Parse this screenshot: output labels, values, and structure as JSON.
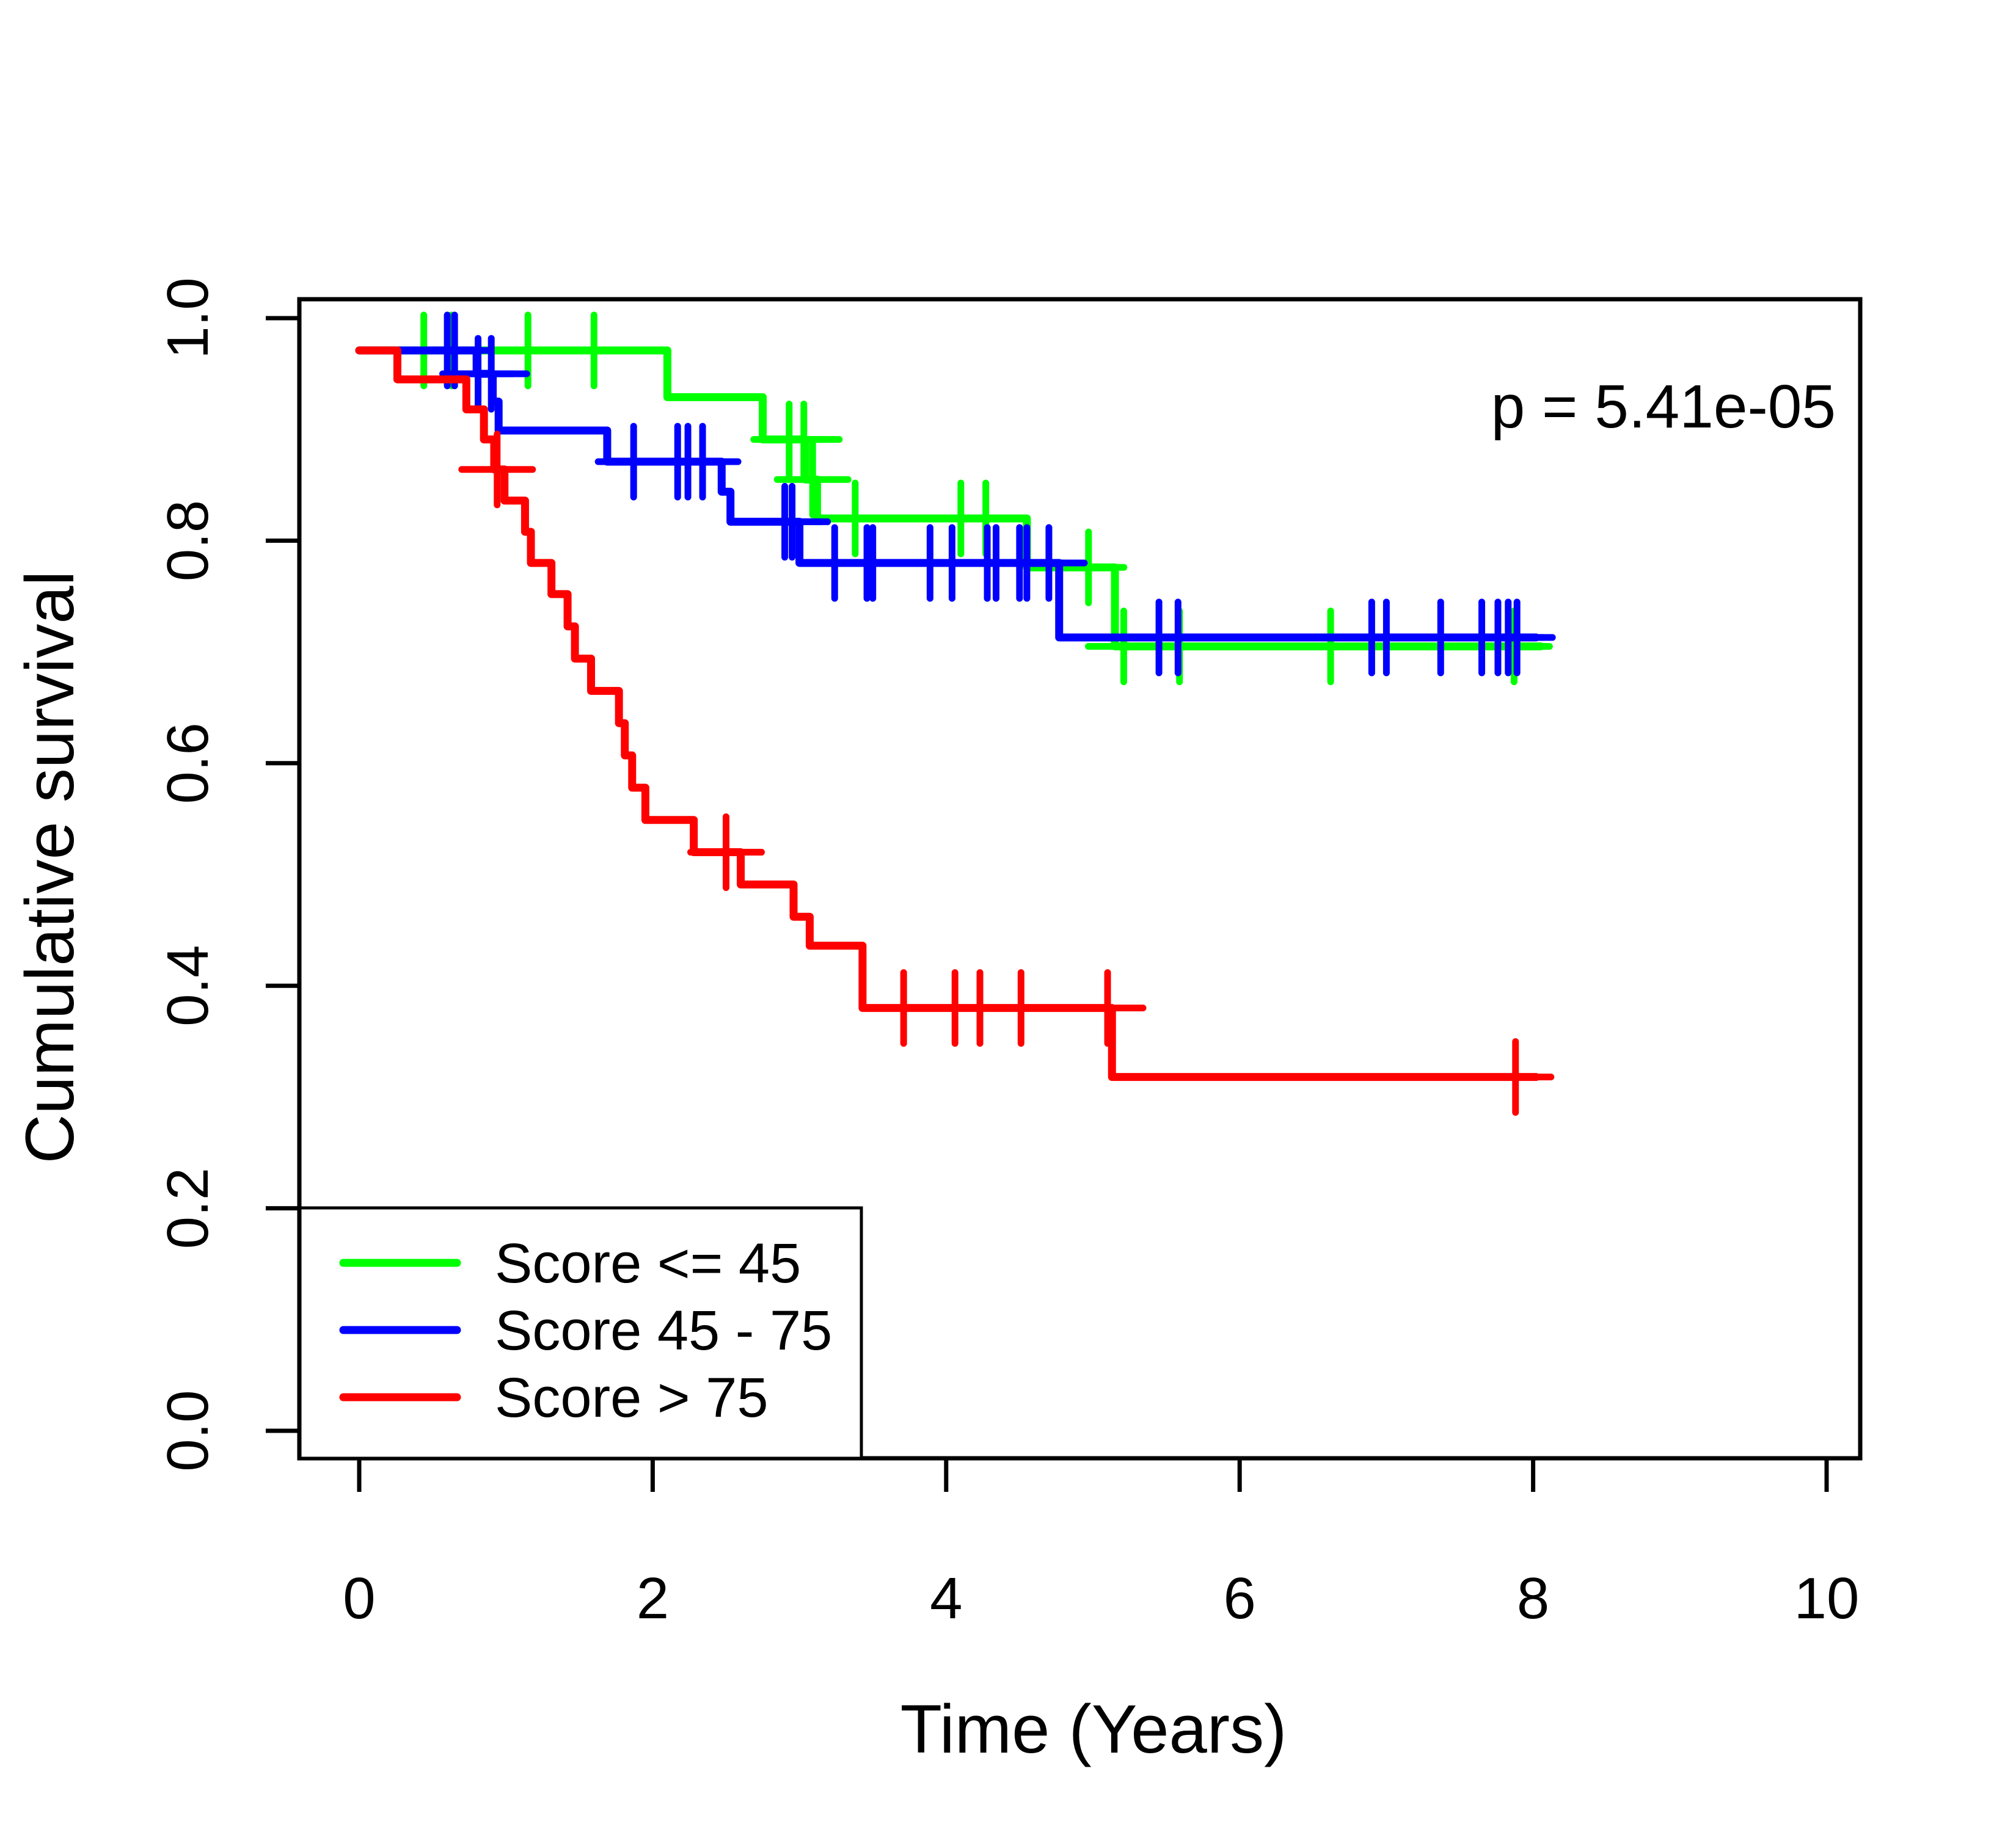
{
  "figure": {
    "background_color": "#ffffff",
    "plot_border_color": "#000000"
  },
  "annotation": {
    "text": "p = 5.41e-05"
  },
  "axes": {
    "x": {
      "label": "Time (Years)",
      "ticks": [
        "0",
        "2",
        "4",
        "6",
        "8",
        "10"
      ],
      "domain": [
        0,
        10
      ]
    },
    "y": {
      "label": "Cumulative survival",
      "ticks": [
        "0.0",
        "0.2",
        "0.4",
        "0.6",
        "0.8",
        "1.0"
      ],
      "domain": [
        0.0,
        1.0
      ]
    }
  },
  "legend": {
    "position": "bottom-left",
    "items": [
      {
        "label": "Score <= 45",
        "color": "#00ff00"
      },
      {
        "label": "Score 45 - 75",
        "color": "#0000ff"
      },
      {
        "label": "Score > 75",
        "color": "#ff0000"
      }
    ]
  },
  "chart_data": {
    "type": "line",
    "subtype": "kaplan-meier-step",
    "title": "",
    "xlabel": "Time (Years)",
    "ylabel": "Cumulative survival",
    "xlim": [
      0,
      10
    ],
    "ylim": [
      0.0,
      1.0
    ],
    "x_ticks": [
      0,
      2,
      4,
      6,
      8,
      10
    ],
    "y_ticks": [
      0.0,
      0.2,
      0.4,
      0.6,
      0.8,
      1.0
    ],
    "grid": false,
    "legend_position": "bottom-left",
    "p_value_text": "p = 5.41e-05",
    "series": [
      {
        "name": "Score <= 45",
        "color": "#00ff00",
        "end_time": 8.05,
        "steps": [
          [
            0,
            0.971
          ],
          [
            2.1,
            0.929
          ],
          [
            2.75,
            0.891
          ],
          [
            3.04,
            0.855
          ],
          [
            3.12,
            0.82
          ],
          [
            4.55,
            0.776
          ],
          [
            5.15,
            0.705
          ]
        ],
        "censor_times": [
          0.44,
          0.63,
          1.15,
          1.6,
          2.93,
          3.03,
          3.09,
          3.38,
          4.1,
          4.27,
          4.97,
          5.21,
          5.59,
          6.62,
          7.87
        ]
      },
      {
        "name": "Score 45 - 75",
        "color": "#0000ff",
        "end_time": 8.02,
        "steps": [
          [
            0,
            0.971
          ],
          [
            0.8,
            0.95
          ],
          [
            0.91,
            0.925
          ],
          [
            0.95,
            0.899
          ],
          [
            1.69,
            0.871
          ],
          [
            2.47,
            0.844
          ],
          [
            2.53,
            0.817
          ],
          [
            3.0,
            0.78
          ],
          [
            4.77,
            0.713
          ]
        ],
        "censor_times": [
          0.6,
          0.65,
          0.81,
          0.9,
          1.87,
          2.17,
          2.24,
          2.34,
          2.9,
          2.95,
          3.24,
          3.46,
          3.5,
          3.89,
          4.04,
          4.28,
          4.34,
          4.5,
          4.55,
          4.7,
          5.45,
          5.58,
          6.9,
          7.0,
          7.37,
          7.65,
          7.76,
          7.83,
          7.89
        ]
      },
      {
        "name": "Score > 75",
        "color": "#ff0000",
        "end_time": 8.02,
        "steps": [
          [
            0,
            0.971
          ],
          [
            0.26,
            0.945
          ],
          [
            0.73,
            0.918
          ],
          [
            0.85,
            0.891
          ],
          [
            0.92,
            0.864
          ],
          [
            0.99,
            0.836
          ],
          [
            1.13,
            0.808
          ],
          [
            1.17,
            0.78
          ],
          [
            1.31,
            0.752
          ],
          [
            1.42,
            0.723
          ],
          [
            1.47,
            0.694
          ],
          [
            1.58,
            0.665
          ],
          [
            1.77,
            0.636
          ],
          [
            1.81,
            0.607
          ],
          [
            1.86,
            0.578
          ],
          [
            1.95,
            0.549
          ],
          [
            2.28,
            0.52
          ],
          [
            2.6,
            0.491
          ],
          [
            2.96,
            0.462
          ],
          [
            3.07,
            0.436
          ],
          [
            3.43,
            0.38
          ],
          [
            5.13,
            0.318
          ]
        ],
        "censor_times": [
          0.94,
          2.5,
          3.71,
          4.06,
          4.23,
          4.51,
          5.1,
          7.88
        ]
      }
    ]
  }
}
